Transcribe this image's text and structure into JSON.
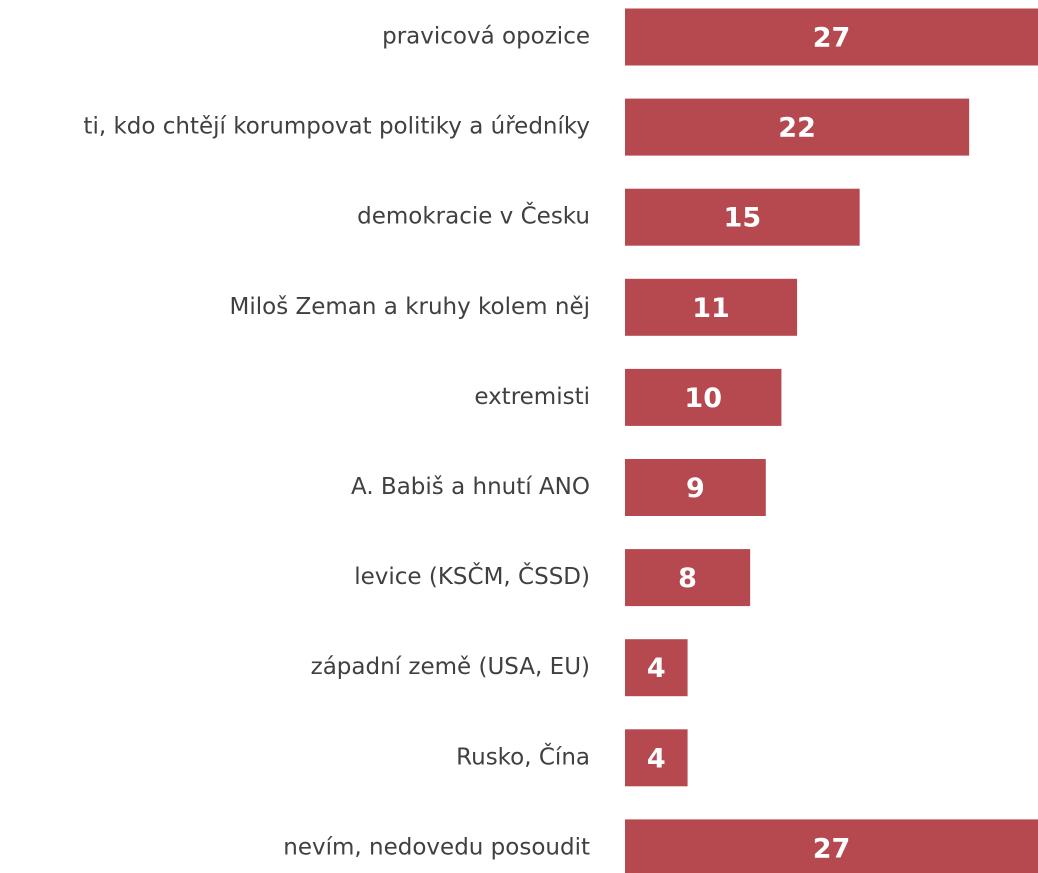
{
  "chart_data": {
    "type": "bar",
    "orientation": "horizontal",
    "categories": [
      "pravicová opozice",
      "ti, kdo chtějí korumpovat politiky a úředníky",
      "demokracie v Česku",
      "Miloš Zeman a kruhy kolem něj",
      "extremisti",
      "A. Babiš a hnutí ANO",
      "levice (KSČM, ČSSD)",
      "západní země (USA, EU)",
      "Rusko, Čína",
      "nevím, nedovedu posoudit"
    ],
    "values": [
      27,
      22,
      15,
      11,
      10,
      9,
      8,
      4,
      4,
      27
    ],
    "color": "#b5494f",
    "xlim": [
      0,
      26.4
    ]
  }
}
